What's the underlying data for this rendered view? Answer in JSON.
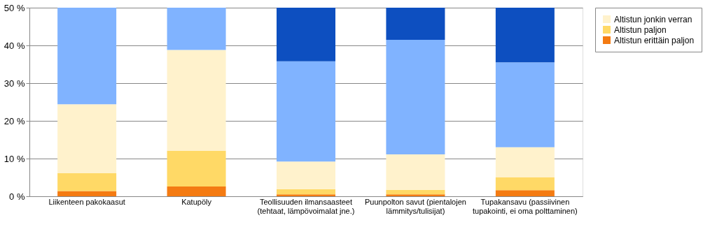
{
  "chart_data": {
    "type": "bar",
    "stacked": true,
    "categories": [
      "Liikenteen pakokaasut",
      "Katupöly",
      "Teollisuuden ilmansaasteet\n(tehtaat, lämpövoimalat jne.)",
      "Puunpolton savut (pientalojen\nlämmitys/tulisijat)",
      "Tupakansavu (passiivinen\ntupakointi, ei oma polttaminen)"
    ],
    "series": [
      {
        "name": "Altistun erittäin paljon",
        "color": "#f47b12",
        "values": [
          1.4,
          2.6,
          0.5,
          0.5,
          1.6
        ]
      },
      {
        "name": "Altistun paljon",
        "color": "#ffd966",
        "values": [
          4.7,
          9.5,
          1.4,
          1.2,
          3.4
        ]
      },
      {
        "name": "Altistun jonkin verran",
        "color": "#fff2cc",
        "values": [
          18.3,
          26.7,
          7.3,
          9.4,
          8.0
        ]
      },
      {
        "color": "#80b3ff",
        "values": [
          25.6,
          11.2,
          26.6,
          30.4,
          22.5
        ]
      },
      {
        "color": "#0d4fc0",
        "values": [
          null,
          null,
          14.2,
          8.5,
          14.5
        ]
      }
    ],
    "ylim": [
      0,
      50
    ],
    "yticks": [
      {
        "value": 0,
        "label": "0 %"
      },
      {
        "value": 10,
        "label": "10 %"
      },
      {
        "value": 20,
        "label": "20 %"
      },
      {
        "value": 30,
        "label": "30 %"
      },
      {
        "value": 40,
        "label": "40 %"
      },
      {
        "value": 50,
        "label": "50 %"
      }
    ],
    "grid": "y",
    "legend": "right"
  }
}
